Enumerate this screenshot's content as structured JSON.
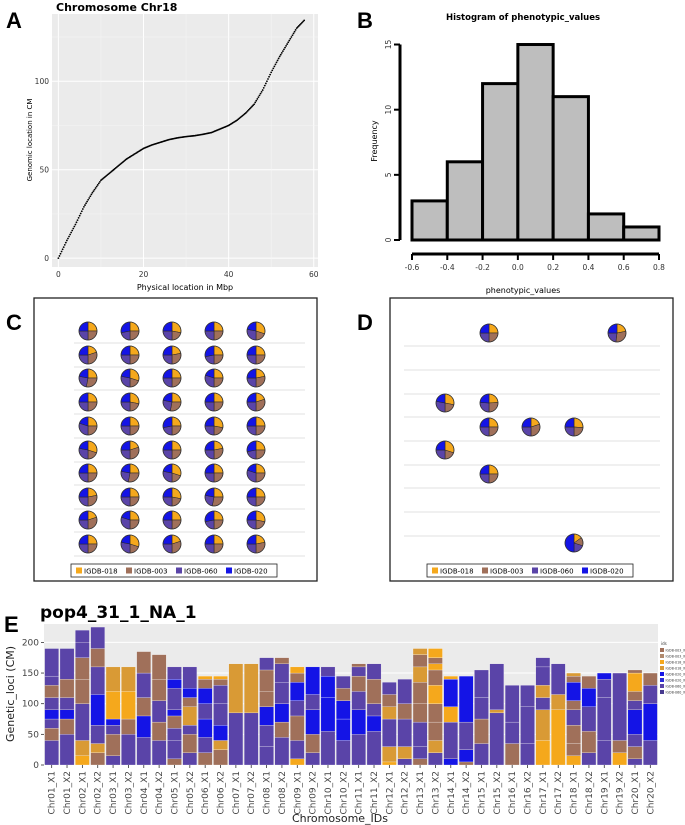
{
  "panels": {
    "A": {
      "letter": "A"
    },
    "B": {
      "letter": "B"
    },
    "C": {
      "letter": "C"
    },
    "D": {
      "letter": "D"
    },
    "E": {
      "letter": "E"
    }
  },
  "colors": {
    "IGDB-018": "#f5a81c",
    "IGDB-003": "#a0705a",
    "IGDB-060": "#5a44a8",
    "IGDB-020": "#1414e6",
    "orange2": "#d99a35",
    "grey_panel": "#ebebeb"
  },
  "chart_data": [
    {
      "id": "A",
      "type": "scatter",
      "title": "Chromosome Chr18",
      "xlabel": "Physical location in Mbp",
      "ylabel": "Genomic location in CM",
      "xlim": [
        -1.5,
        61
      ],
      "ylim": [
        -5,
        138
      ],
      "xticks": [
        0,
        20,
        40,
        60
      ],
      "yticks": [
        0,
        50,
        100
      ],
      "curve": [
        [
          0,
          0
        ],
        [
          2,
          10
        ],
        [
          4,
          19
        ],
        [
          6,
          29
        ],
        [
          8,
          37
        ],
        [
          10,
          44
        ],
        [
          12,
          48
        ],
        [
          14,
          52
        ],
        [
          16,
          56
        ],
        [
          18,
          59
        ],
        [
          20,
          62
        ],
        [
          22,
          64
        ],
        [
          24,
          65.5
        ],
        [
          26,
          67
        ],
        [
          28,
          68
        ],
        [
          30,
          68.7
        ],
        [
          32,
          69.2
        ],
        [
          34,
          70
        ],
        [
          36,
          71
        ],
        [
          38,
          73
        ],
        [
          40,
          75
        ],
        [
          42,
          78
        ],
        [
          44,
          82
        ],
        [
          46,
          87
        ],
        [
          48,
          95
        ],
        [
          50,
          105
        ],
        [
          52,
          114
        ],
        [
          54,
          122
        ],
        [
          56,
          130
        ],
        [
          58,
          135
        ]
      ]
    },
    {
      "id": "B",
      "type": "bar",
      "title": "Histogram of phenotypic_values",
      "xlabel": "phenotypic_values",
      "ylabel": "Frequency",
      "bin_edges": [
        -0.6,
        -0.4,
        -0.2,
        0.0,
        0.2,
        0.4,
        0.6,
        0.8
      ],
      "values": [
        3,
        6,
        12,
        15,
        11,
        2,
        1
      ],
      "xlim": [
        -0.6,
        0.8
      ],
      "ylim": [
        0,
        15.5
      ],
      "xticks": [
        "-0.6",
        "-0.4",
        "-0.2",
        "0.0",
        "0.2",
        "0.4",
        "0.6",
        "0.8"
      ],
      "yticks": [
        "0",
        "5",
        "10",
        "15"
      ]
    },
    {
      "id": "C",
      "type": "pie",
      "layout": "grid",
      "legend": [
        "IGDB-018",
        "IGDB-003",
        "IGDB-060",
        "IGDB-020"
      ],
      "pies": [
        [
          0.25,
          0.25,
          0.25,
          0.25
        ],
        [
          0.25,
          0.25,
          0.25,
          0.25
        ],
        [
          0.25,
          0.25,
          0.25,
          0.25
        ],
        [
          0.25,
          0.25,
          0.25,
          0.25
        ],
        [
          0.25,
          0.25,
          0.25,
          0.25
        ]
      ]
    },
    {
      "id": "D",
      "type": "pie",
      "layout": "sparse",
      "legend": [
        "IGDB-018",
        "IGDB-003",
        "IGDB-060",
        "IGDB-020"
      ],
      "pies": [
        [
          0.25,
          0.25,
          0.25,
          0.25
        ]
      ]
    },
    {
      "id": "E",
      "type": "bar",
      "stacked": true,
      "title": "pop4_31_1_NA_1",
      "xlabel": "Chromosome_IDs",
      "ylabel": "Genetic_loci (CM)",
      "ylim": [
        0,
        230
      ],
      "yticks": [
        0,
        50,
        100,
        150,
        200
      ],
      "categories": [
        "Chr01_X1",
        "Chr01_X2",
        "Chr02_X1",
        "Chr02_X2",
        "Chr03_X1",
        "Chr03_X2",
        "Chr04_X1",
        "Chr04_X2",
        "Chr05_X1",
        "Chr05_X2",
        "Chr06_X1",
        "Chr06_X2",
        "Chr07_X1",
        "Chr07_X2",
        "Chr08_X1",
        "Chr08_X2",
        "Chr09_X1",
        "Chr09_X2",
        "Chr10_X1",
        "Chr10_X2",
        "Chr11_X1",
        "Chr11_X2",
        "Chr12_X1",
        "Chr12_X2",
        "Chr13_X1",
        "Chr13_X2",
        "Chr14_X1",
        "Chr14_X2",
        "Chr15_X1",
        "Chr15_X2",
        "Chr16_X1",
        "Chr16_X2",
        "Chr17_X1",
        "Chr17_X2",
        "Chr18_X1",
        "Chr18_X2",
        "Chr19_X1",
        "Chr19_X2",
        "Chr20_X1",
        "Chr20_X2"
      ],
      "stacks": [
        [
          [
            40,
            "IGDB-060"
          ],
          [
            20,
            "IGDB-003"
          ],
          [
            15,
            "IGDB-060"
          ],
          [
            15,
            "IGDB-020"
          ],
          [
            20,
            "IGDB-060"
          ],
          [
            20,
            "IGDB-003"
          ],
          [
            15,
            "IGDB-060"
          ],
          [
            45,
            "IGDB-060"
          ]
        ],
        [
          [
            50,
            "IGDB-060"
          ],
          [
            25,
            "IGDB-003"
          ],
          [
            15,
            "IGDB-020"
          ],
          [
            20,
            "IGDB-060"
          ],
          [
            30,
            "IGDB-003"
          ],
          [
            50,
            "IGDB-060"
          ]
        ],
        [
          [
            15,
            "IGDB-018"
          ],
          [
            25,
            "IGDB-018"
          ],
          [
            60,
            "IGDB-060"
          ],
          [
            40,
            "IGDB-003"
          ],
          [
            35,
            "IGDB-003"
          ],
          [
            25,
            "IGDB-060"
          ],
          [
            20,
            "IGDB-060"
          ]
        ],
        [
          [
            20,
            "IGDB-003"
          ],
          [
            15,
            "IGDB-018"
          ],
          [
            30,
            "IGDB-060"
          ],
          [
            50,
            "IGDB-020"
          ],
          [
            45,
            "IGDB-060"
          ],
          [
            30,
            "IGDB-003"
          ],
          [
            35,
            "IGDB-060"
          ]
        ],
        [
          [
            15,
            "IGDB-060"
          ],
          [
            35,
            "IGDB-003"
          ],
          [
            15,
            "IGDB-060"
          ],
          [
            10,
            "IGDB-020"
          ],
          [
            45,
            "IGDB-018"
          ],
          [
            40,
            "IGDB-018"
          ]
        ],
        [
          [
            50,
            "IGDB-060"
          ],
          [
            25,
            "IGDB-003"
          ],
          [
            45,
            "IGDB-018"
          ],
          [
            40,
            "IGDB-018"
          ]
        ],
        [
          [
            45,
            "IGDB-060"
          ],
          [
            35,
            "IGDB-020"
          ],
          [
            30,
            "IGDB-003"
          ],
          [
            40,
            "IGDB-060"
          ],
          [
            35,
            "IGDB-003"
          ]
        ],
        [
          [
            40,
            "IGDB-060"
          ],
          [
            30,
            "IGDB-003"
          ],
          [
            35,
            "IGDB-060"
          ],
          [
            35,
            "IGDB-003"
          ],
          [
            40,
            "IGDB-003"
          ]
        ],
        [
          [
            10,
            "IGDB-003"
          ],
          [
            30,
            "IGDB-060"
          ],
          [
            20,
            "IGDB-060"
          ],
          [
            20,
            "IGDB-003"
          ],
          [
            10,
            "IGDB-020"
          ],
          [
            35,
            "IGDB-060"
          ],
          [
            15,
            "IGDB-020"
          ],
          [
            20,
            "IGDB-060"
          ]
        ],
        [
          [
            20,
            "IGDB-060"
          ],
          [
            30,
            "IGDB-003"
          ],
          [
            15,
            "IGDB-060"
          ],
          [
            30,
            "IGDB-018"
          ],
          [
            15,
            "IGDB-003"
          ],
          [
            15,
            "IGDB-020"
          ],
          [
            35,
            "IGDB-060"
          ]
        ],
        [
          [
            20,
            "IGDB-003"
          ],
          [
            25,
            "IGDB-060"
          ],
          [
            30,
            "IGDB-020"
          ],
          [
            25,
            "IGDB-060"
          ],
          [
            25,
            "IGDB-020"
          ],
          [
            15,
            "IGDB-003"
          ],
          [
            5,
            "IGDB-018"
          ]
        ],
        [
          [
            25,
            "IGDB-003"
          ],
          [
            15,
            "IGDB-018"
          ],
          [
            25,
            "IGDB-020"
          ],
          [
            35,
            "IGDB-060"
          ],
          [
            30,
            "IGDB-060"
          ],
          [
            10,
            "IGDB-003"
          ],
          [
            5,
            "IGDB-018"
          ]
        ],
        [
          [
            85,
            "IGDB-060"
          ],
          [
            80,
            "IGDB-018"
          ]
        ],
        [
          [
            85,
            "IGDB-060"
          ],
          [
            80,
            "IGDB-018"
          ]
        ],
        [
          [
            30,
            "IGDB-060"
          ],
          [
            35,
            "IGDB-060"
          ],
          [
            30,
            "IGDB-020"
          ],
          [
            25,
            "IGDB-003"
          ],
          [
            35,
            "IGDB-003"
          ],
          [
            20,
            "IGDB-060"
          ]
        ],
        [
          [
            45,
            "IGDB-060"
          ],
          [
            25,
            "IGDB-003"
          ],
          [
            30,
            "IGDB-020"
          ],
          [
            35,
            "IGDB-060"
          ],
          [
            30,
            "IGDB-060"
          ],
          [
            10,
            "IGDB-003"
          ]
        ],
        [
          [
            10,
            "IGDB-018"
          ],
          [
            30,
            "IGDB-060"
          ],
          [
            40,
            "IGDB-003"
          ],
          [
            25,
            "IGDB-060"
          ],
          [
            30,
            "IGDB-020"
          ],
          [
            15,
            "IGDB-003"
          ],
          [
            10,
            "IGDB-018"
          ]
        ],
        [
          [
            20,
            "IGDB-060"
          ],
          [
            30,
            "IGDB-003"
          ],
          [
            40,
            "IGDB-020"
          ],
          [
            25,
            "IGDB-060"
          ],
          [
            45,
            "IGDB-020"
          ]
        ],
        [
          [
            55,
            "IGDB-060"
          ],
          [
            55,
            "IGDB-020"
          ],
          [
            35,
            "IGDB-020"
          ],
          [
            15,
            "IGDB-060"
          ]
        ],
        [
          [
            40,
            "IGDB-060"
          ],
          [
            35,
            "IGDB-020"
          ],
          [
            30,
            "IGDB-020"
          ],
          [
            20,
            "IGDB-003"
          ],
          [
            20,
            "IGDB-060"
          ]
        ],
        [
          [
            50,
            "IGDB-060"
          ],
          [
            40,
            "IGDB-020"
          ],
          [
            30,
            "IGDB-060"
          ],
          [
            25,
            "IGDB-003"
          ],
          [
            15,
            "IGDB-060"
          ],
          [
            5,
            "IGDB-003"
          ]
        ],
        [
          [
            55,
            "IGDB-060"
          ],
          [
            25,
            "IGDB-020"
          ],
          [
            20,
            "IGDB-060"
          ],
          [
            40,
            "IGDB-003"
          ],
          [
            25,
            "IGDB-060"
          ]
        ],
        [
          [
            5,
            "IGDB-018"
          ],
          [
            25,
            "IGDB-018"
          ],
          [
            45,
            "IGDB-060"
          ],
          [
            20,
            "IGDB-018"
          ],
          [
            20,
            "IGDB-003"
          ],
          [
            20,
            "IGDB-060"
          ]
        ],
        [
          [
            10,
            "IGDB-060"
          ],
          [
            20,
            "IGDB-018"
          ],
          [
            45,
            "IGDB-060"
          ],
          [
            25,
            "IGDB-003"
          ],
          [
            40,
            "IGDB-060"
          ]
        ],
        [
          [
            10,
            "IGDB-003"
          ],
          [
            20,
            "IGDB-060"
          ],
          [
            40,
            "IGDB-060"
          ],
          [
            30,
            "IGDB-003"
          ],
          [
            35,
            "IGDB-003"
          ],
          [
            25,
            "IGDB-018"
          ],
          [
            20,
            "IGDB-003"
          ],
          [
            10,
            "IGDB-018"
          ]
        ],
        [
          [
            20,
            "IGDB-060"
          ],
          [
            20,
            "IGDB-018"
          ],
          [
            30,
            "IGDB-003"
          ],
          [
            30,
            "IGDB-003"
          ],
          [
            30,
            "IGDB-018"
          ],
          [
            25,
            "IGDB-003"
          ],
          [
            10,
            "IGDB-018"
          ],
          [
            10,
            "IGDB-003"
          ],
          [
            15,
            "IGDB-018"
          ]
        ],
        [
          [
            10,
            "IGDB-020"
          ],
          [
            60,
            "IGDB-060"
          ],
          [
            25,
            "IGDB-018"
          ],
          [
            45,
            "IGDB-020"
          ],
          [
            5,
            "IGDB-018"
          ]
        ],
        [
          [
            5,
            "IGDB-003"
          ],
          [
            20,
            "IGDB-020"
          ],
          [
            45,
            "IGDB-060"
          ],
          [
            75,
            "IGDB-020"
          ]
        ],
        [
          [
            35,
            "IGDB-060"
          ],
          [
            40,
            "IGDB-003"
          ],
          [
            35,
            "IGDB-060"
          ],
          [
            45,
            "IGDB-060"
          ]
        ],
        [
          [
            85,
            "IGDB-060"
          ],
          [
            5,
            "IGDB-018"
          ],
          [
            75,
            "IGDB-060"
          ]
        ],
        [
          [
            35,
            "IGDB-003"
          ],
          [
            35,
            "IGDB-060"
          ],
          [
            60,
            "IGDB-060"
          ]
        ],
        [
          [
            35,
            "IGDB-060"
          ],
          [
            60,
            "IGDB-060"
          ],
          [
            35,
            "IGDB-060"
          ]
        ],
        [
          [
            40,
            "IGDB-018"
          ],
          [
            50,
            "IGDB-018"
          ],
          [
            20,
            "IGDB-060"
          ],
          [
            20,
            "IGDB-018"
          ],
          [
            30,
            "IGDB-060"
          ],
          [
            15,
            "IGDB-060"
          ]
        ],
        [
          [
            90,
            "IGDB-018"
          ],
          [
            25,
            "IGDB-018"
          ],
          [
            50,
            "IGDB-060"
          ]
        ],
        [
          [
            15,
            "IGDB-018"
          ],
          [
            20,
            "IGDB-003"
          ],
          [
            30,
            "IGDB-003"
          ],
          [
            25,
            "IGDB-060"
          ],
          [
            15,
            "IGDB-003"
          ],
          [
            30,
            "IGDB-020"
          ],
          [
            10,
            "IGDB-003"
          ],
          [
            5,
            "IGDB-018"
          ]
        ],
        [
          [
            20,
            "IGDB-060"
          ],
          [
            35,
            "IGDB-003"
          ],
          [
            40,
            "IGDB-060"
          ],
          [
            30,
            "IGDB-020"
          ],
          [
            20,
            "IGDB-003"
          ]
        ],
        [
          [
            40,
            "IGDB-060"
          ],
          [
            70,
            "IGDB-060"
          ],
          [
            30,
            "IGDB-060"
          ],
          [
            10,
            "IGDB-020"
          ]
        ],
        [
          [
            20,
            "IGDB-018"
          ],
          [
            20,
            "IGDB-003"
          ],
          [
            110,
            "IGDB-060"
          ]
        ],
        [
          [
            10,
            "IGDB-060"
          ],
          [
            20,
            "IGDB-003"
          ],
          [
            20,
            "IGDB-060"
          ],
          [
            40,
            "IGDB-020"
          ],
          [
            15,
            "IGDB-060"
          ],
          [
            15,
            "IGDB-003"
          ],
          [
            30,
            "IGDB-018"
          ],
          [
            5,
            "IGDB-003"
          ]
        ],
        [
          [
            40,
            "IGDB-060"
          ],
          [
            60,
            "IGDB-020"
          ],
          [
            30,
            "IGDB-060"
          ],
          [
            20,
            "IGDB-003"
          ]
        ]
      ],
      "legend": [
        "IGDB-003_X1",
        "IGDB-003_X2",
        "IGDB-018_X1",
        "IGDB-018_X2",
        "IGDB-020_X1",
        "IGDB-020_X2",
        "IGDB-060_X1",
        "IGDB-060_X2"
      ],
      "legend_title": "ids"
    }
  ]
}
